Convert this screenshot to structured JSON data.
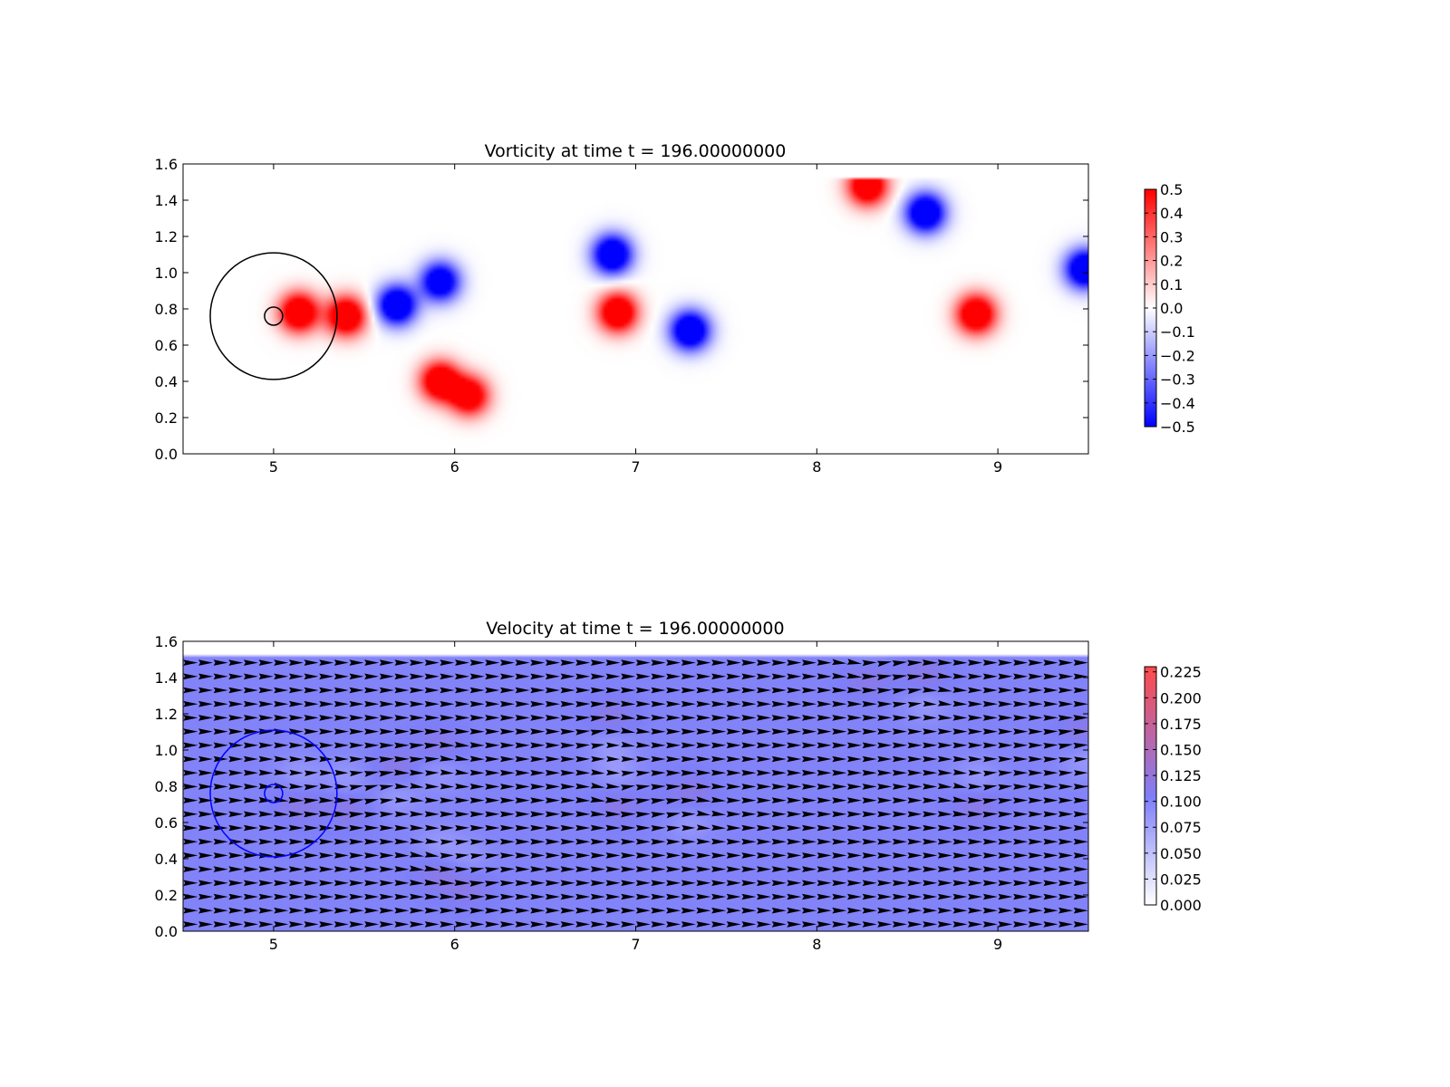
{
  "figure": {
    "background": "#ffffff"
  },
  "chart_data": [
    {
      "type": "heatmap",
      "title": "Vorticity at time t =   196.00000000",
      "xlabel": "",
      "ylabel": "",
      "xlim": [
        4.5,
        9.5
      ],
      "ylim": [
        0.0,
        1.6
      ],
      "xticks": [
        5,
        6,
        7,
        8,
        9
      ],
      "yticks": [
        0.0,
        0.2,
        0.4,
        0.6,
        0.8,
        1.0,
        1.2,
        1.4,
        1.6
      ],
      "colormap": "bwr",
      "colorbar": {
        "range": [
          -0.5,
          0.5
        ],
        "ticks": [
          0.5,
          0.4,
          0.3,
          0.2,
          0.1,
          0.0,
          -0.1,
          -0.2,
          -0.3,
          -0.4,
          -0.5
        ],
        "tick_labels": [
          "0.5",
          "0.4",
          "0.3",
          "0.2",
          "0.1",
          "0.0",
          "−0.1",
          "−0.2",
          "−0.3",
          "−0.4",
          "−0.5"
        ]
      },
      "vortices": [
        {
          "x": 5.14,
          "y": 0.78,
          "w": 0.5
        },
        {
          "x": 5.4,
          "y": 0.76,
          "w": 0.5
        },
        {
          "x": 5.68,
          "y": 0.82,
          "w": -0.5
        },
        {
          "x": 5.92,
          "y": 0.95,
          "w": -0.45
        },
        {
          "x": 5.92,
          "y": 0.4,
          "w": 0.5
        },
        {
          "x": 6.08,
          "y": 0.32,
          "w": 0.45
        },
        {
          "x": 6.87,
          "y": 1.1,
          "w": -0.5
        },
        {
          "x": 6.9,
          "y": 0.78,
          "w": 0.5
        },
        {
          "x": 7.3,
          "y": 0.68,
          "w": -0.5
        },
        {
          "x": 8.28,
          "y": 1.48,
          "w": 0.5
        },
        {
          "x": 8.6,
          "y": 1.33,
          "w": -0.5
        },
        {
          "x": 8.88,
          "y": 0.77,
          "w": 0.5
        },
        {
          "x": 9.48,
          "y": 1.02,
          "w": -0.5
        }
      ],
      "circles": [
        {
          "x": 5.0,
          "y": 0.76,
          "r": 0.35,
          "color": "#000000"
        },
        {
          "x": 5.0,
          "y": 0.76,
          "r": 0.05,
          "color": "#000000"
        }
      ]
    },
    {
      "type": "heatmap",
      "title": "Velocity at time t =   196.00000000",
      "xlabel": "",
      "ylabel": "",
      "xlim": [
        4.5,
        9.5
      ],
      "ylim": [
        0.0,
        1.6
      ],
      "xticks": [
        5,
        6,
        7,
        8,
        9
      ],
      "yticks": [
        0.0,
        0.2,
        0.4,
        0.6,
        0.8,
        1.0,
        1.2,
        1.4,
        1.6
      ],
      "data_ylim": [
        0.0,
        1.52
      ],
      "colormap": "white-blue-red",
      "colors": [
        "#ffffff",
        "#7e7ff9",
        "#ff4a4a"
      ],
      "colorbar": {
        "range": [
          0.0,
          0.23
        ],
        "ticks": [
          0.225,
          0.2,
          0.175,
          0.15,
          0.125,
          0.1,
          0.075,
          0.05,
          0.025,
          0.0
        ],
        "tick_labels": [
          "0.225",
          "0.200",
          "0.175",
          "0.150",
          "0.125",
          "0.100",
          "0.075",
          "0.050",
          "0.025",
          "0.000"
        ]
      },
      "base_speed": 0.1,
      "quiver": true,
      "vortices": [
        {
          "x": 5.14,
          "y": 0.78,
          "w": 0.5
        },
        {
          "x": 5.4,
          "y": 0.76,
          "w": 0.5
        },
        {
          "x": 5.68,
          "y": 0.82,
          "w": -0.5
        },
        {
          "x": 5.92,
          "y": 0.95,
          "w": -0.45
        },
        {
          "x": 5.92,
          "y": 0.4,
          "w": 0.5
        },
        {
          "x": 6.08,
          "y": 0.32,
          "w": 0.45
        },
        {
          "x": 6.87,
          "y": 1.1,
          "w": -0.5
        },
        {
          "x": 6.9,
          "y": 0.78,
          "w": 0.5
        },
        {
          "x": 7.3,
          "y": 0.68,
          "w": -0.5
        },
        {
          "x": 8.28,
          "y": 1.48,
          "w": 0.5
        },
        {
          "x": 8.6,
          "y": 1.33,
          "w": -0.5
        },
        {
          "x": 8.88,
          "y": 0.77,
          "w": 0.5
        },
        {
          "x": 9.48,
          "y": 1.02,
          "w": -0.5
        }
      ],
      "circles": [
        {
          "x": 5.0,
          "y": 0.76,
          "r": 0.35,
          "color": "#0000ff"
        },
        {
          "x": 5.0,
          "y": 0.76,
          "r": 0.05,
          "color": "#0000ff"
        }
      ]
    }
  ]
}
